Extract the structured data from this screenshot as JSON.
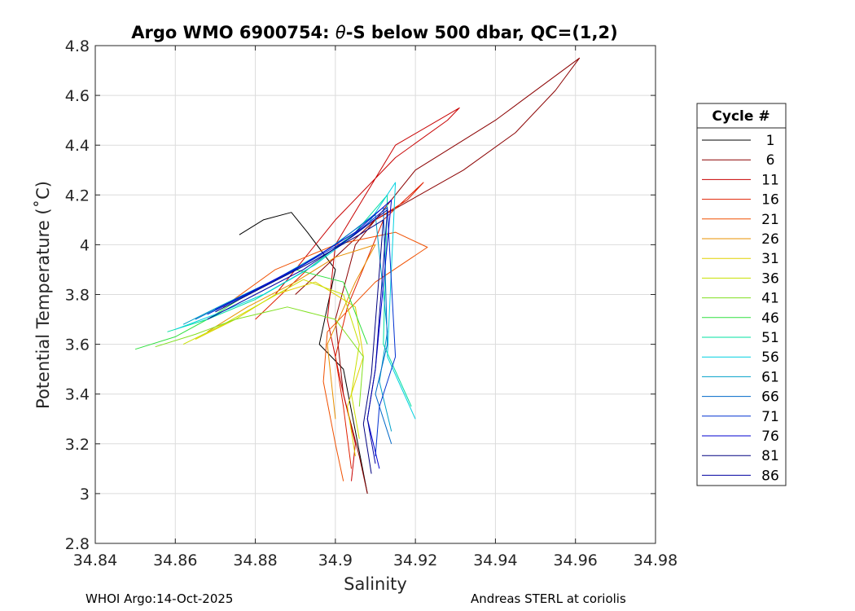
{
  "chart_data": {
    "type": "line",
    "title": "Argo WMO 6900754: θ-S below 500 dbar,  QC=(1,2)",
    "title_parts": {
      "prefix": "Argo WMO 6900754: ",
      "symbol": "θ",
      "suffix": "-S below 500 dbar,  QC=(1,2)"
    },
    "xlabel": "Salinity",
    "ylabel": "Potential Temperature (˚C)",
    "xlim": [
      34.84,
      34.98
    ],
    "ylim": [
      2.8,
      4.8
    ],
    "xticks": [
      "34.84",
      "34.86",
      "34.88",
      "34.9",
      "34.92",
      "34.94",
      "34.96",
      "34.98"
    ],
    "yticks": [
      "2.8",
      "3",
      "3.2",
      "3.4",
      "3.6",
      "3.8",
      "4",
      "4.2",
      "4.4",
      "4.6",
      "4.8"
    ],
    "grid": true,
    "legend": {
      "title": "Cycle #",
      "placement": "outside-right",
      "entries": [
        {
          "label": "1",
          "color": "#000000"
        },
        {
          "label": "6",
          "color": "#8b0000"
        },
        {
          "label": "11",
          "color": "#c80000"
        },
        {
          "label": "16",
          "color": "#e02000"
        },
        {
          "label": "21",
          "color": "#f05000"
        },
        {
          "label": "26",
          "color": "#e89000"
        },
        {
          "label": "31",
          "color": "#e0d000"
        },
        {
          "label": "36",
          "color": "#c8e000"
        },
        {
          "label": "41",
          "color": "#80e020"
        },
        {
          "label": "46",
          "color": "#30e040"
        },
        {
          "label": "51",
          "color": "#00e0a0"
        },
        {
          "label": "56",
          "color": "#00d0e0"
        },
        {
          "label": "61",
          "color": "#00a0c8"
        },
        {
          "label": "66",
          "color": "#0068c8"
        },
        {
          "label": "71",
          "color": "#0030d0"
        },
        {
          "label": "76",
          "color": "#0000d0"
        },
        {
          "label": "81",
          "color": "#000080"
        },
        {
          "label": "86",
          "color": "#0000a0"
        }
      ]
    },
    "series": [
      {
        "name": "1",
        "color": "#000000",
        "x": [
          34.876,
          34.882,
          34.889,
          34.893,
          34.9,
          34.896,
          34.902,
          34.908
        ],
        "y": [
          4.04,
          4.1,
          4.13,
          4.05,
          3.9,
          3.6,
          3.5,
          3.0
        ]
      },
      {
        "name": "6",
        "color": "#8b0000",
        "x": [
          34.89,
          34.91,
          34.932,
          34.945,
          34.955,
          34.961,
          34.94,
          34.92,
          34.905,
          34.9,
          34.902,
          34.906,
          34.908
        ],
        "y": [
          3.8,
          4.1,
          4.3,
          4.45,
          4.62,
          4.75,
          4.5,
          4.3,
          4.0,
          3.7,
          3.4,
          3.15,
          3.0
        ]
      },
      {
        "name": "11",
        "color": "#c80000",
        "x": [
          34.885,
          34.9,
          34.915,
          34.928,
          34.931,
          34.915,
          34.9,
          34.898,
          34.902,
          34.905,
          34.904
        ],
        "y": [
          3.8,
          4.1,
          4.35,
          4.5,
          4.55,
          4.4,
          4.0,
          3.7,
          3.4,
          3.2,
          3.05
        ]
      },
      {
        "name": "16",
        "color": "#e02000",
        "x": [
          34.88,
          34.893,
          34.905,
          34.918,
          34.922,
          34.912,
          34.903,
          34.9,
          34.902,
          34.904
        ],
        "y": [
          3.7,
          3.9,
          4.05,
          4.18,
          4.25,
          4.1,
          3.75,
          3.55,
          3.35,
          3.1
        ]
      },
      {
        "name": "21",
        "color": "#f05000",
        "x": [
          34.872,
          34.885,
          34.9,
          34.915,
          34.923,
          34.91,
          34.898,
          34.897,
          34.9,
          34.902
        ],
        "y": [
          3.75,
          3.9,
          4.0,
          4.05,
          3.99,
          3.85,
          3.65,
          3.45,
          3.2,
          3.05
        ]
      },
      {
        "name": "26",
        "color": "#e89000",
        "x": [
          34.868,
          34.878,
          34.89,
          34.9,
          34.91,
          34.905,
          34.898,
          34.9
        ],
        "y": [
          3.65,
          3.75,
          3.85,
          3.95,
          4.0,
          3.85,
          3.6,
          3.3
        ]
      },
      {
        "name": "31",
        "color": "#e0d000",
        "x": [
          34.865,
          34.875,
          34.885,
          34.895,
          34.905,
          34.907,
          34.903,
          34.905
        ],
        "y": [
          3.62,
          3.7,
          3.8,
          3.85,
          3.75,
          3.55,
          3.35,
          3.15
        ]
      },
      {
        "name": "36",
        "color": "#c8e000",
        "x": [
          34.862,
          34.872,
          34.882,
          34.892,
          34.902,
          34.906,
          34.904,
          34.906
        ],
        "y": [
          3.6,
          3.68,
          3.77,
          3.86,
          3.8,
          3.6,
          3.4,
          3.22
        ]
      },
      {
        "name": "41",
        "color": "#80e020",
        "x": [
          34.855,
          34.865,
          34.875,
          34.888,
          34.9,
          34.907,
          34.906
        ],
        "y": [
          3.59,
          3.64,
          3.7,
          3.75,
          3.7,
          3.55,
          3.35
        ]
      },
      {
        "name": "46",
        "color": "#30e040",
        "x": [
          34.85,
          34.86,
          34.868,
          34.878,
          34.89,
          34.902,
          34.908
        ],
        "y": [
          3.58,
          3.63,
          3.7,
          3.8,
          3.9,
          3.85,
          3.6
        ]
      },
      {
        "name": "51",
        "color": "#00e0a0",
        "x": [
          34.858,
          34.868,
          34.88,
          34.893,
          34.905,
          34.913,
          34.912,
          34.919
        ],
        "y": [
          3.65,
          3.7,
          3.78,
          3.9,
          4.05,
          4.2,
          3.6,
          3.35
        ]
      },
      {
        "name": "56",
        "color": "#00d0e0",
        "x": [
          34.86,
          34.87,
          34.882,
          34.895,
          34.908,
          34.915,
          34.913,
          34.92
        ],
        "y": [
          3.66,
          3.72,
          3.8,
          3.92,
          4.08,
          4.25,
          3.55,
          3.3
        ]
      },
      {
        "name": "61",
        "color": "#00a0c8",
        "x": [
          34.862,
          34.872,
          34.885,
          34.898,
          34.91,
          34.913,
          34.911,
          34.914
        ],
        "y": [
          3.68,
          3.76,
          3.86,
          3.98,
          4.12,
          3.65,
          3.45,
          3.25
        ]
      },
      {
        "name": "66",
        "color": "#0068c8",
        "x": [
          34.865,
          34.875,
          34.888,
          34.9,
          34.912,
          34.913,
          34.91,
          34.914
        ],
        "y": [
          3.7,
          3.78,
          3.88,
          4.0,
          4.15,
          3.6,
          3.4,
          3.2
        ]
      },
      {
        "name": "71",
        "color": "#0030d0",
        "x": [
          34.868,
          34.878,
          34.89,
          34.903,
          34.913,
          34.915,
          34.911,
          34.91
        ],
        "y": [
          3.72,
          3.8,
          3.9,
          4.02,
          4.15,
          3.55,
          3.35,
          3.15
        ]
      },
      {
        "name": "76",
        "color": "#0000d0",
        "x": [
          34.87,
          34.88,
          34.892,
          34.905,
          34.914,
          34.91,
          34.908,
          34.911
        ],
        "y": [
          3.74,
          3.82,
          3.92,
          4.05,
          4.18,
          3.5,
          3.3,
          3.1
        ]
      },
      {
        "name": "81",
        "color": "#000080",
        "x": [
          34.87,
          34.882,
          34.894,
          34.906,
          34.912,
          34.909,
          34.907,
          34.909
        ],
        "y": [
          3.73,
          3.83,
          3.93,
          4.04,
          4.1,
          3.48,
          3.28,
          3.08
        ]
      },
      {
        "name": "86",
        "color": "#0000a0",
        "x": [
          34.868,
          34.88,
          34.892,
          34.904,
          34.913,
          34.91,
          34.908,
          34.91
        ],
        "y": [
          3.7,
          3.8,
          3.9,
          4.03,
          4.14,
          3.5,
          3.3,
          3.12
        ]
      }
    ]
  },
  "footer": {
    "left": "WHOI Argo:14-Oct-2025",
    "right": "Andreas STERL at coriolis"
  }
}
